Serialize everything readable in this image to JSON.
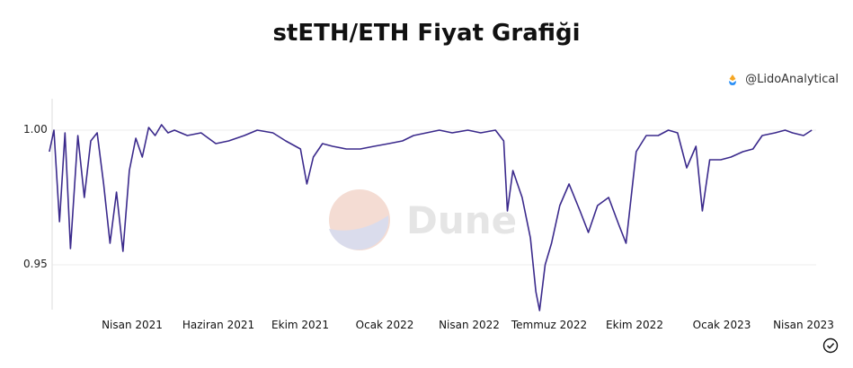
{
  "header": {
    "title": "stETH/ETH Fiyat Grafiği"
  },
  "attribution": {
    "handle": "@LidoAnalytical",
    "icon": "lido-drop-icon"
  },
  "watermark": {
    "text": "Dune",
    "icon": "dune-logo-icon"
  },
  "colors": {
    "line": "#3b2a8c",
    "grid": "#eeeeee",
    "watermark_text": "#e6e6e6"
  },
  "chart_data": {
    "type": "line",
    "title": "stETH/ETH Fiyat Grafiği",
    "xlabel": "",
    "ylabel": "",
    "ylim": [
      0.93,
      1.008
    ],
    "y_ticks": [
      {
        "value": 1.0,
        "label": "1.00"
      },
      {
        "value": 0.95,
        "label": "0.95"
      }
    ],
    "x_ticks": [
      {
        "value": "2021-04-01",
        "label": "Nisan 2021"
      },
      {
        "value": "2021-06-01",
        "label": "Haziran 2021"
      },
      {
        "value": "2021-10-01",
        "label": "Ekim 2021"
      },
      {
        "value": "2022-01-01",
        "label": "Ocak 2022"
      },
      {
        "value": "2022-04-01",
        "label": "Nisan 2022"
      },
      {
        "value": "2022-07-01",
        "label": "Temmuz 2022"
      },
      {
        "value": "2022-10-01",
        "label": "Ekim 2022"
      },
      {
        "value": "2023-01-01",
        "label": "Ocak 2023"
      },
      {
        "value": "2023-04-01",
        "label": "Nisan 2023"
      }
    ],
    "grid": true,
    "series": [
      {
        "x": [
          "2021-01-01",
          "2021-01-06",
          "2021-01-12",
          "2021-01-18",
          "2021-01-24",
          "2021-02-01",
          "2021-02-08",
          "2021-02-15",
          "2021-02-22",
          "2021-03-01",
          "2021-03-08",
          "2021-03-15",
          "2021-03-22",
          "2021-03-29",
          "2021-04-05",
          "2021-04-12",
          "2021-04-19",
          "2021-04-26",
          "2021-05-03",
          "2021-05-10",
          "2021-05-17",
          "2021-05-24",
          "2021-05-31",
          "2021-06-15",
          "2021-07-01",
          "2021-07-15",
          "2021-08-01",
          "2021-08-15",
          "2021-09-01",
          "2021-09-15",
          "2021-10-01",
          "2021-10-08",
          "2021-10-15",
          "2021-10-25",
          "2021-11-05",
          "2021-11-20",
          "2021-12-05",
          "2021-12-20",
          "2022-01-05",
          "2022-01-20",
          "2022-02-01",
          "2022-02-15",
          "2022-03-01",
          "2022-03-15",
          "2022-04-01",
          "2022-04-15",
          "2022-05-01",
          "2022-05-10",
          "2022-05-14",
          "2022-05-20",
          "2022-05-30",
          "2022-06-08",
          "2022-06-14",
          "2022-06-18",
          "2022-06-24",
          "2022-07-01",
          "2022-07-10",
          "2022-07-20",
          "2022-08-01",
          "2022-08-10",
          "2022-08-20",
          "2022-09-01",
          "2022-09-12",
          "2022-09-20",
          "2022-10-01",
          "2022-10-12",
          "2022-10-25",
          "2022-11-05",
          "2022-11-15",
          "2022-11-25",
          "2022-12-05",
          "2022-12-12",
          "2022-12-20",
          "2023-01-01",
          "2023-01-12",
          "2023-01-25",
          "2023-02-05",
          "2023-02-15",
          "2023-03-01",
          "2023-03-12",
          "2023-03-20",
          "2023-04-01",
          "2023-04-10"
        ],
        "values": [
          0.992,
          1.0,
          0.966,
          0.999,
          0.956,
          0.998,
          0.975,
          0.996,
          0.999,
          0.98,
          0.958,
          0.977,
          0.955,
          0.985,
          0.997,
          0.99,
          1.001,
          0.998,
          1.002,
          0.999,
          1.0,
          0.999,
          0.998,
          0.999,
          0.995,
          0.996,
          0.998,
          1.0,
          0.999,
          0.996,
          0.993,
          0.98,
          0.99,
          0.995,
          0.994,
          0.993,
          0.993,
          0.994,
          0.995,
          0.996,
          0.998,
          0.999,
          1.0,
          0.999,
          1.0,
          0.999,
          1.0,
          0.996,
          0.97,
          0.985,
          0.975,
          0.96,
          0.94,
          0.933,
          0.95,
          0.958,
          0.972,
          0.98,
          0.97,
          0.962,
          0.972,
          0.975,
          0.965,
          0.958,
          0.992,
          0.998,
          0.998,
          1.0,
          0.999,
          0.986,
          0.994,
          0.97,
          0.989,
          0.989,
          0.99,
          0.992,
          0.993,
          0.998,
          0.999,
          1.0,
          0.999,
          0.998,
          1.0
        ]
      }
    ]
  }
}
